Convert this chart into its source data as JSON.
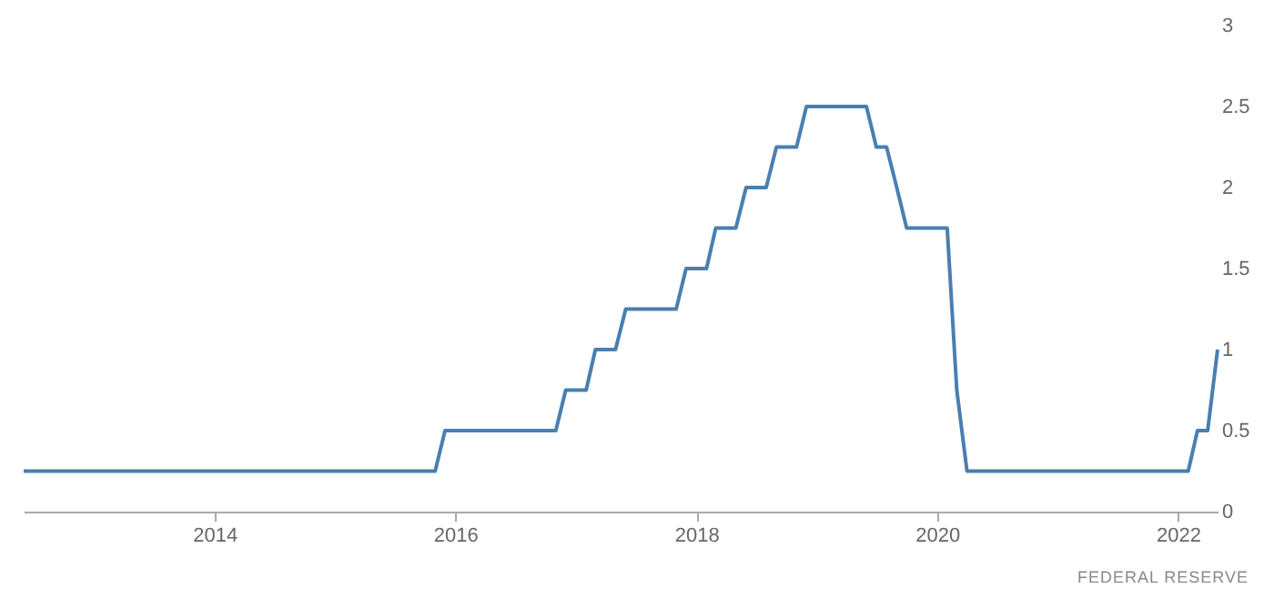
{
  "chart_data": {
    "type": "line",
    "x": [
      "2012-06",
      "2015-11",
      "2015-12",
      "2016-11",
      "2016-12",
      "2017-02",
      "2017-03",
      "2017-05",
      "2017-06",
      "2017-11",
      "2017-12",
      "2018-02",
      "2018-03",
      "2018-05",
      "2018-06",
      "2018-08",
      "2018-09",
      "2018-11",
      "2018-12",
      "2019-06",
      "2019-07",
      "2019-08",
      "2019-09",
      "2019-10",
      "2020-02",
      "2020-03",
      "2020-04",
      "2022-02",
      "2022-03",
      "2022-04",
      "2022-05"
    ],
    "series": [
      {
        "color": "#4a7fb0",
        "values": [
          0.25,
          0.25,
          0.5,
          0.5,
          0.75,
          0.75,
          1,
          1,
          1.25,
          1.25,
          1.5,
          1.5,
          1.75,
          1.75,
          2,
          2,
          2.25,
          2.25,
          2.5,
          2.5,
          2.25,
          2.25,
          2,
          1.75,
          1.75,
          0.75,
          0.25,
          0.25,
          0.5,
          0.5,
          1
        ]
      }
    ],
    "xlim": [
      "2012-06",
      "2022-05"
    ],
    "xticks": [
      "2014",
      "2016",
      "2018",
      "2020",
      "2022"
    ],
    "ylim": [
      0,
      3
    ],
    "yticks": [
      0,
      0.5,
      1,
      1.5,
      2,
      2.5,
      3
    ],
    "annotations": [
      "FEDERAL RESERVE"
    ]
  }
}
